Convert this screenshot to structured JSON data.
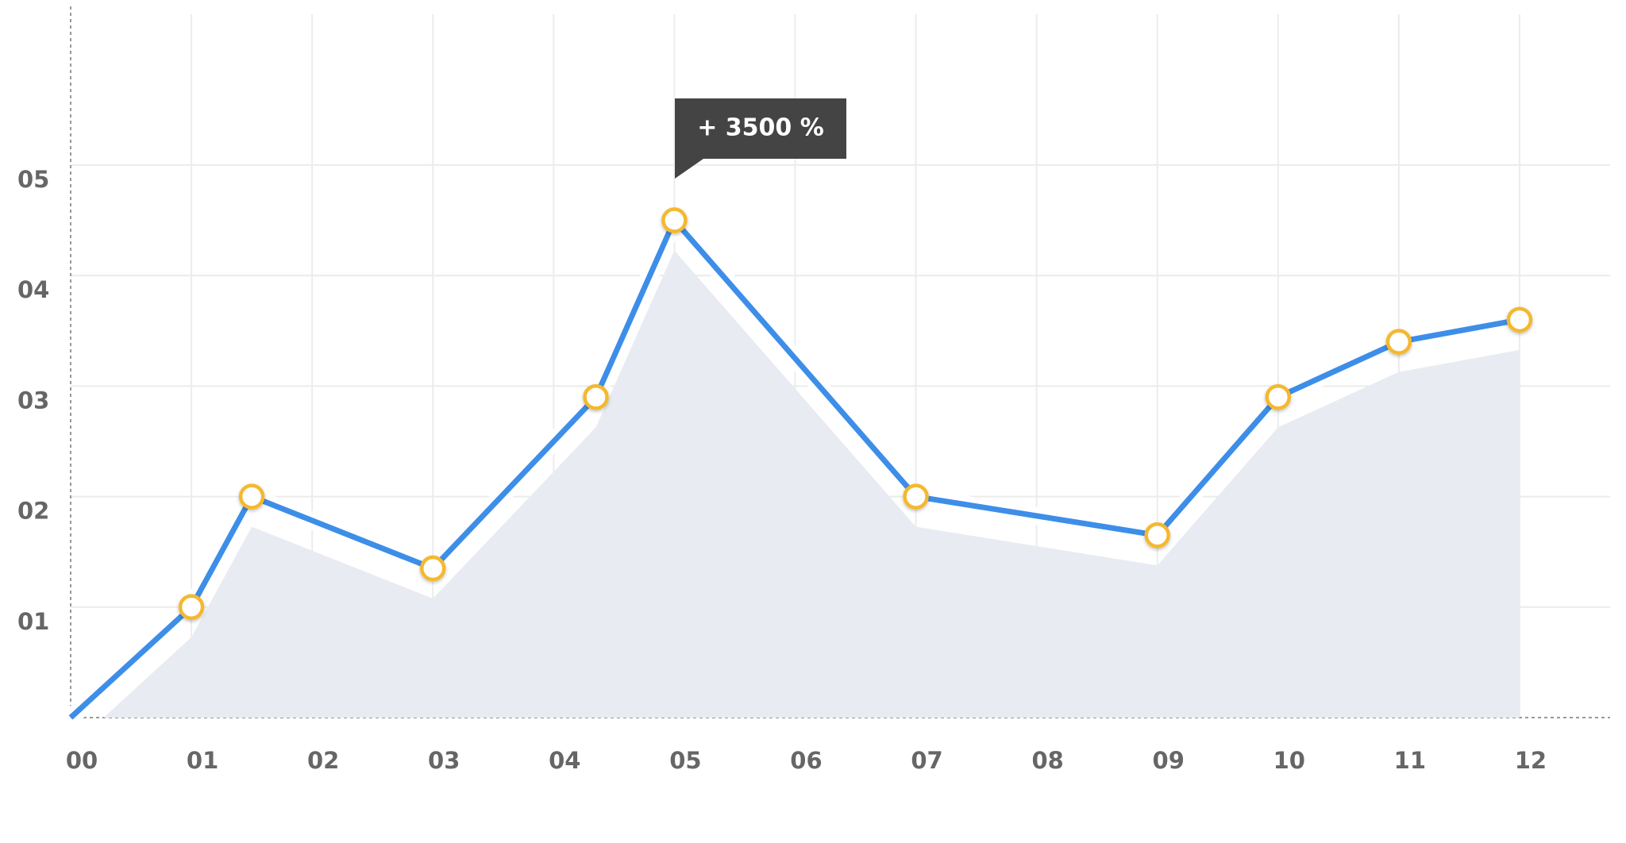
{
  "chart_data": {
    "type": "line",
    "annotation": "+ 3500 %",
    "x": [
      0,
      1,
      1.5,
      3,
      4.35,
      5,
      7,
      9,
      10,
      11,
      12
    ],
    "values": [
      0,
      1,
      2,
      1.35,
      2.9,
      4.5,
      2,
      1.65,
      2.9,
      3.4,
      3.6
    ],
    "color": "#3d8ee8",
    "marker_color": "#f5b82e",
    "area_color": "#e8ebf2",
    "xlim": [
      0,
      12.75
    ],
    "ylim": [
      0,
      6.4
    ],
    "xticks": [
      {
        "value": 0,
        "label": "00"
      },
      {
        "value": 1,
        "label": "01"
      },
      {
        "value": 2,
        "label": "02"
      },
      {
        "value": 3,
        "label": "03"
      },
      {
        "value": 4,
        "label": "04"
      },
      {
        "value": 5,
        "label": "05"
      },
      {
        "value": 6,
        "label": "06"
      },
      {
        "value": 7,
        "label": "07"
      },
      {
        "value": 8,
        "label": "08"
      },
      {
        "value": 9,
        "label": "09"
      },
      {
        "value": 10,
        "label": "10"
      },
      {
        "value": 11,
        "label": "11"
      },
      {
        "value": 12,
        "label": "12"
      }
    ],
    "yticks": [
      {
        "value": 1,
        "label": "01"
      },
      {
        "value": 2,
        "label": "02"
      },
      {
        "value": 3,
        "label": "03"
      },
      {
        "value": 4,
        "label": "04"
      },
      {
        "value": 5,
        "label": "05"
      }
    ],
    "grid": true
  }
}
